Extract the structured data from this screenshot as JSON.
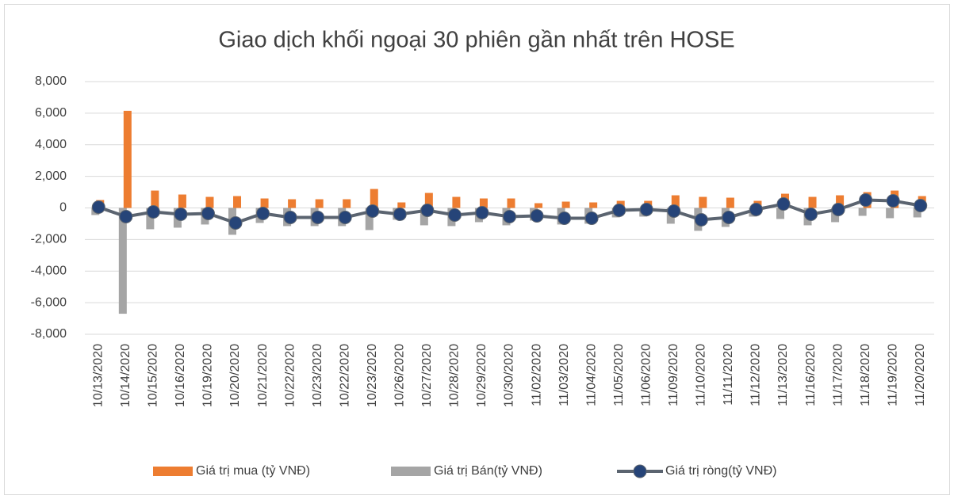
{
  "chart_data": {
    "type": "bar_line",
    "title": "Giao dịch khối ngoại 30 phiên gần nhất trên HOSE",
    "categories": [
      "10/13/2020",
      "10/14/2020",
      "10/15/2020",
      "10/16/2020",
      "10/19/2020",
      "10/20/2020",
      "10/21/2020",
      "10/22/2020",
      "10/23/2020",
      "10/22/2020",
      "10/23/2020",
      "10/26/2020",
      "10/27/2020",
      "10/28/2020",
      "10/29/2020",
      "10/30/2020",
      "11/02/2020",
      "11/03/2020",
      "11/04/2020",
      "11/05/2020",
      "11/06/2020",
      "11/09/2020",
      "11/10/2020",
      "11/11/2020",
      "11/12/2020",
      "11/13/2020",
      "11/16/2020",
      "11/17/2020",
      "11/18/2020",
      "11/19/2020",
      "11/20/2020"
    ],
    "series": [
      {
        "name": "Giá trị mua (tỷ VNĐ)",
        "type": "bar",
        "color": "#ed7d31",
        "values": [
          500,
          6150,
          1100,
          850,
          700,
          750,
          600,
          550,
          550,
          550,
          1200,
          350,
          950,
          700,
          600,
          600,
          300,
          400,
          350,
          450,
          450,
          800,
          700,
          650,
          450,
          900,
          700,
          800,
          1000,
          1100,
          750
        ]
      },
      {
        "name": "Giá trị Bán(tỷ VNĐ)",
        "type": "bar",
        "color": "#a5a5a5",
        "values": [
          -450,
          -6700,
          -1350,
          -1250,
          -1050,
          -1700,
          -950,
          -1150,
          -1150,
          -1150,
          -1400,
          -750,
          -1100,
          -1150,
          -900,
          -1100,
          -800,
          -1050,
          -1000,
          -600,
          -550,
          -1000,
          -1450,
          -1200,
          -550,
          -700,
          -1100,
          -900,
          -500,
          -650,
          -600
        ]
      },
      {
        "name": "Giá trị ròng(tỷ VNĐ)",
        "type": "line",
        "color": "#5b6470",
        "marker_color": "#264478",
        "values": [
          50,
          -550,
          -250,
          -400,
          -350,
          -950,
          -350,
          -600,
          -600,
          -600,
          -200,
          -400,
          -150,
          -450,
          -300,
          -550,
          -500,
          -650,
          -650,
          -150,
          -100,
          -200,
          -750,
          -600,
          -100,
          250,
          -400,
          -100,
          500,
          450,
          150
        ]
      }
    ],
    "ylim": [
      -8000,
      8000
    ],
    "yticks": [
      {
        "value": -8000,
        "label": "-8,000"
      },
      {
        "value": -6000,
        "label": "-6,000"
      },
      {
        "value": -4000,
        "label": "-4,000"
      },
      {
        "value": -2000,
        "label": "-2,000"
      },
      0,
      {
        "value": 2000,
        "label": "2,000"
      },
      {
        "value": 4000,
        "label": "4,000"
      },
      {
        "value": 6000,
        "label": "6,000"
      },
      {
        "value": 8000,
        "label": "8,000"
      }
    ],
    "grid": true,
    "legend": "bottom"
  }
}
